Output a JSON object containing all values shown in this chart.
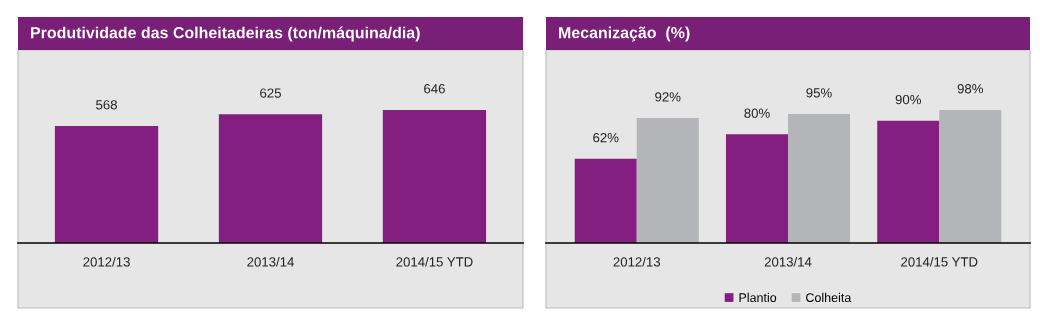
{
  "chart_data": [
    {
      "type": "bar",
      "title": "Produtividade das Colheitadeiras (ton/máquina/dia)",
      "categories": [
        "2012/13",
        "2013/14",
        "2014/15 YTD"
      ],
      "values": [
        568,
        625,
        646
      ],
      "color": "#841f81",
      "data_labels": true,
      "grid": false,
      "legend": false
    },
    {
      "type": "bar",
      "title": "Mecanização  (%)",
      "categories": [
        "2012/13",
        "2013/14",
        "2014/15 YTD"
      ],
      "series": [
        {
          "name": "Plantio",
          "color": "#841f81",
          "values": [
            62,
            80,
            90
          ],
          "value_labels": [
            "62%",
            "80%",
            "90%"
          ]
        },
        {
          "name": "Colheita",
          "color": "#b3b5b8",
          "values": [
            92,
            95,
            98
          ],
          "value_labels": [
            "92%",
            "95%",
            "98%"
          ]
        }
      ],
      "grid": false,
      "legend": "bottom"
    }
  ]
}
